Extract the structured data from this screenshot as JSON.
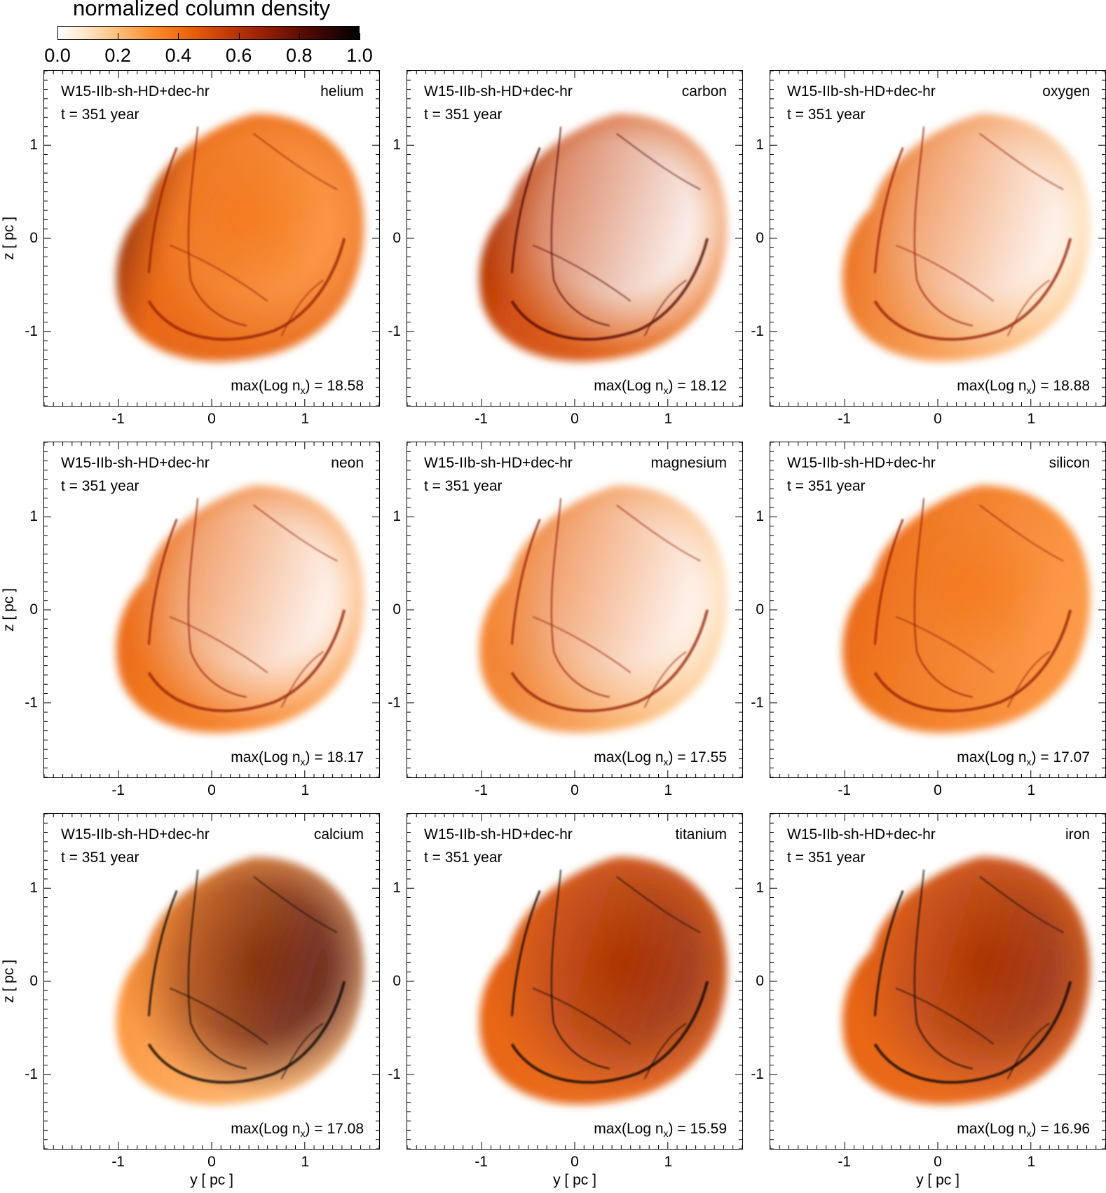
{
  "colorbar": {
    "title": "normalized column density",
    "ticks": [
      "0.0",
      "0.2",
      "0.4",
      "0.6",
      "0.8",
      "1.0"
    ],
    "range": [
      0.0,
      1.0
    ],
    "colormap": [
      "#ffffff",
      "#ffe9cf",
      "#ffbf7a",
      "#fb8a2c",
      "#e8620c",
      "#c33c05",
      "#8f1d02",
      "#4d0801",
      "#000000"
    ]
  },
  "axes": {
    "xlabel": "y [ pc ]",
    "ylabel": "z [ pc ]",
    "xticks": [
      "-1",
      "0",
      "1"
    ],
    "yticks": [
      "1",
      "0",
      "-1"
    ],
    "range": [
      -1.8,
      1.8
    ]
  },
  "panels": [
    {
      "run": "W15-IIb-sh-HD+dec-hr",
      "time": "t = 351 year",
      "element": "helium",
      "max_prefix": "max(Log n",
      "max_sub": "x",
      "max_suffix": ") = 18.58",
      "shell": 0.55,
      "core": 0.35,
      "rim": 0.55,
      "left": 0.85
    },
    {
      "run": "W15-IIb-sh-HD+dec-hr",
      "time": "t = 351 year",
      "element": "carbon",
      "max_prefix": "max(Log n",
      "max_sub": "x",
      "max_suffix": ") = 18.12",
      "shell": 0.6,
      "core": 0.0,
      "rim": 0.5,
      "left": 0.7
    },
    {
      "run": "W15-IIb-sh-HD+dec-hr",
      "time": "t = 351 year",
      "element": "oxygen",
      "max_prefix": "max(Log n",
      "max_sub": "x",
      "max_suffix": ") = 18.88",
      "shell": 0.45,
      "core": 0.04,
      "rim": 0.3,
      "left": 0.45
    },
    {
      "run": "W15-IIb-sh-HD+dec-hr",
      "time": "t = 351 year",
      "element": "neon",
      "max_prefix": "max(Log n",
      "max_sub": "x",
      "max_suffix": ") = 18.17",
      "shell": 0.5,
      "core": 0.02,
      "rim": 0.35,
      "left": 0.5
    },
    {
      "run": "W15-IIb-sh-HD+dec-hr",
      "time": "t = 351 year",
      "element": "magnesium",
      "max_prefix": "max(Log n",
      "max_sub": "x",
      "max_suffix": ") = 17.55",
      "shell": 0.45,
      "core": 0.06,
      "rim": 0.3,
      "left": 0.4
    },
    {
      "run": "W15-IIb-sh-HD+dec-hr",
      "time": "t = 351 year",
      "element": "silicon",
      "max_prefix": "max(Log n",
      "max_sub": "x",
      "max_suffix": ") = 17.07",
      "shell": 0.5,
      "core": 0.35,
      "rim": 0.35,
      "left": 0.45
    },
    {
      "run": "W15-IIb-sh-HD+dec-hr",
      "time": "t = 351 year",
      "element": "calcium",
      "max_prefix": "max(Log n",
      "max_sub": "x",
      "max_suffix": ") = 17.08",
      "shell": 0.4,
      "core": 0.9,
      "rim": 0.3,
      "left": 0.35
    },
    {
      "run": "W15-IIb-sh-HD+dec-hr",
      "time": "t = 351 year",
      "element": "titanium",
      "max_prefix": "max(Log n",
      "max_sub": "x",
      "max_suffix": ") = 15.59",
      "shell": 0.55,
      "core": 0.75,
      "rim": 0.5,
      "left": 0.55
    },
    {
      "run": "W15-IIb-sh-HD+dec-hr",
      "time": "t = 351 year",
      "element": "iron",
      "max_prefix": "max(Log n",
      "max_sub": "x",
      "max_suffix": ") = 16.96",
      "shell": 0.55,
      "core": 0.7,
      "rim": 0.5,
      "left": 0.55
    }
  ]
}
